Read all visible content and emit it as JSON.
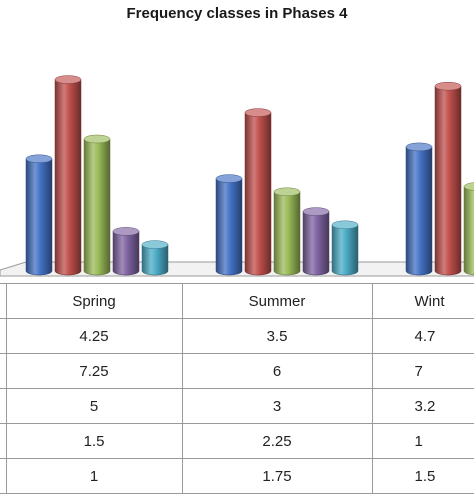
{
  "chart_data": {
    "type": "bar",
    "title": "Frequency classes in Phases 4",
    "categories": [
      "Spring",
      "Summer",
      "Wint"
    ],
    "series": [
      {
        "color": "#4472c4",
        "values": [
          "4.25",
          "3.5",
          "4.7"
        ]
      },
      {
        "color": "#c0504d",
        "values": [
          "7.25",
          "6",
          "7"
        ]
      },
      {
        "color": "#9bbb59",
        "values": [
          "5",
          "3",
          "3.2"
        ]
      },
      {
        "color": "#8064a2",
        "values": [
          "1.5",
          "2.25",
          "1"
        ]
      },
      {
        "color": "#4bacc6",
        "values": [
          "1",
          "1.75",
          "1.5"
        ]
      }
    ],
    "grid": false,
    "legend": "none"
  }
}
